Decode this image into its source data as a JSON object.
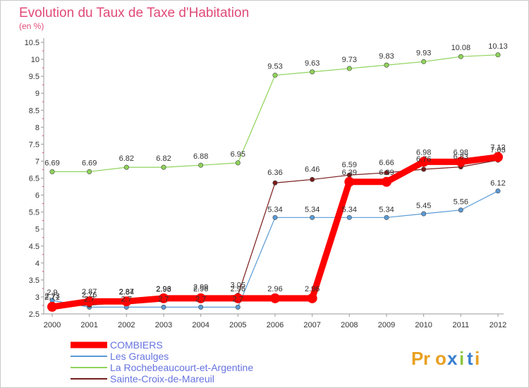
{
  "chart_data": {
    "type": "line",
    "title": "Evolution du Taux de Taxe d'Habitation",
    "subtitle": "(en %)",
    "x": [
      "2000",
      "2001",
      "2002",
      "2003",
      "2004",
      "2005",
      "2006",
      "2007",
      "2008",
      "2009",
      "2010",
      "2011",
      "2012"
    ],
    "ylim": [
      2.5,
      10.5
    ],
    "yticks": [
      "2.5",
      "3",
      "3.5",
      "4",
      "4.5",
      "5",
      "5.5",
      "6",
      "6.5",
      "7",
      "7.5",
      "8",
      "8.5",
      "9",
      "9.5",
      "10",
      "10.5"
    ],
    "grid": false,
    "legend_position": "bottom-left",
    "series": [
      {
        "name": "COMBIERS",
        "color": "#ff0000",
        "values": [
          2.71,
          2.87,
          2.87,
          2.96,
          2.96,
          2.96,
          2.96,
          2.96,
          6.39,
          6.39,
          6.98,
          6.98,
          7.12
        ],
        "labels": [
          "2.71",
          "2.87",
          "2.87",
          "2.96",
          "2.96",
          "2.96",
          "2.96",
          "2.96",
          "6.39",
          "6.39",
          "6.98",
          "6.98",
          "7.12"
        ]
      },
      {
        "name": "Les Graulges",
        "color": "#5b9bd5",
        "values": [
          2.9,
          2.7,
          2.7,
          2.7,
          2.7,
          2.7,
          5.34,
          5.34,
          5.34,
          5.34,
          5.45,
          5.56,
          6.12
        ],
        "labels": [
          "2.9",
          "2.7",
          "2.7",
          "2.7",
          "2.7",
          "2.7",
          "5.34",
          "5.34",
          "5.34",
          "5.34",
          "5.45",
          "5.56",
          "6.12"
        ]
      },
      {
        "name": "La Rochebeaucourt-et-Argentine",
        "color": "#8fd45a",
        "values": [
          6.69,
          6.69,
          6.82,
          6.82,
          6.88,
          6.95,
          9.53,
          9.63,
          9.73,
          9.83,
          9.93,
          10.08,
          10.13
        ],
        "labels": [
          "6.69",
          "6.69",
          "6.82",
          "6.82",
          "6.88",
          "6.95",
          "9.53",
          "9.63",
          "9.73",
          "9.83",
          "9.93",
          "10.08",
          "10.13"
        ]
      },
      {
        "name": "Sainte-Croix-de-Mareuil",
        "color": "#7a1c1c",
        "values": [
          2.73,
          2.76,
          2.84,
          2.93,
          2.99,
          3.05,
          6.36,
          6.46,
          6.59,
          6.66,
          6.76,
          6.83,
          7.03
        ],
        "labels": [
          "2.73",
          "2.76",
          "2.84",
          "2.93",
          "2.99",
          "3.05",
          "6.36",
          "6.46",
          "6.59",
          "6.66",
          "6.76",
          "6.83",
          "7.03"
        ]
      }
    ]
  },
  "logo": {
    "text": "Proxiti"
  }
}
